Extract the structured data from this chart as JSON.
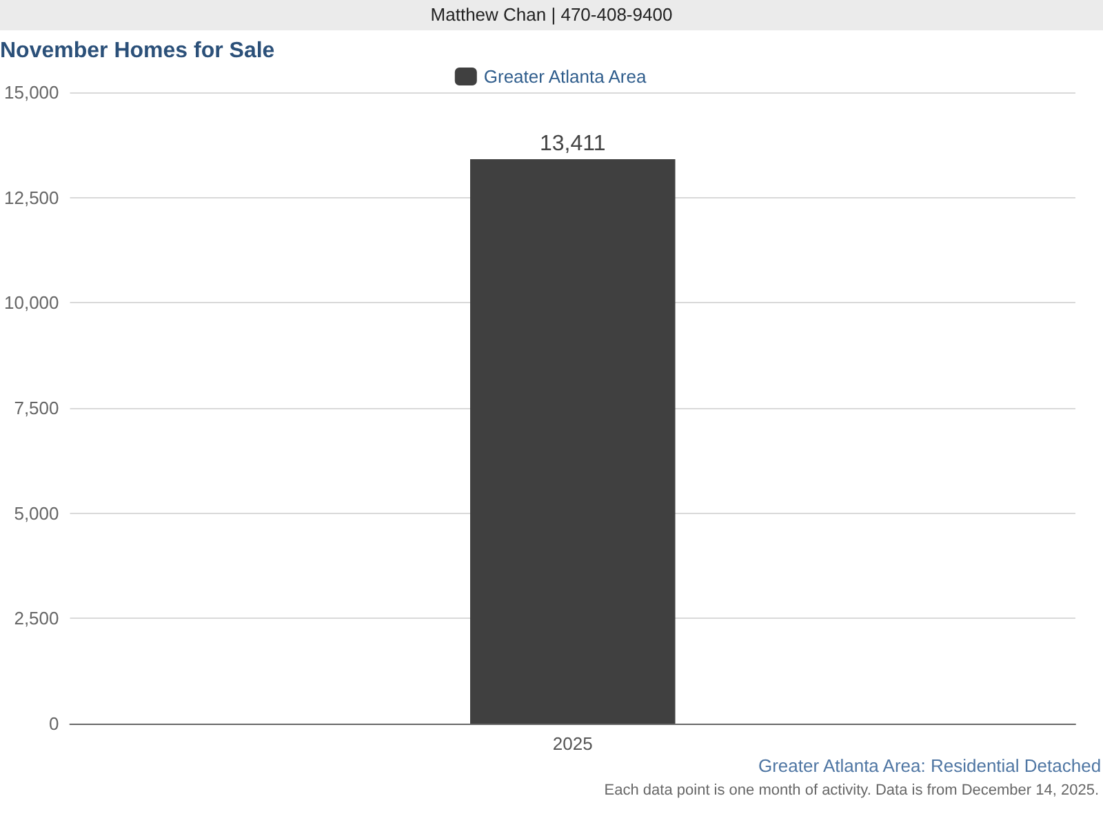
{
  "chart_data": {
    "type": "bar",
    "title": "November Homes for Sale",
    "annotations": [
      "Matthew Chan | 470-408-9400",
      "Greater Atlanta Area: Residential Detached",
      "Each data point is one month of activity. Data is from December 14, 2025."
    ],
    "categories": [
      "2025"
    ],
    "series": [
      {
        "name": "Greater Atlanta Area",
        "color": "#404040",
        "values": [
          13411
        ],
        "value_labels": [
          "13,411"
        ]
      }
    ],
    "ylim": [
      0,
      15000
    ],
    "yticks": [
      0,
      {
        "value": 2500,
        "label": "2,500"
      },
      {
        "value": 5000,
        "label": "5,000"
      },
      {
        "value": 7500,
        "label": "7,500"
      },
      {
        "value": 10000,
        "label": "10,000"
      },
      {
        "value": 12500,
        "label": "12,500"
      },
      {
        "value": 15000,
        "label": "15,000"
      }
    ],
    "grid": "y",
    "legend": "top"
  }
}
